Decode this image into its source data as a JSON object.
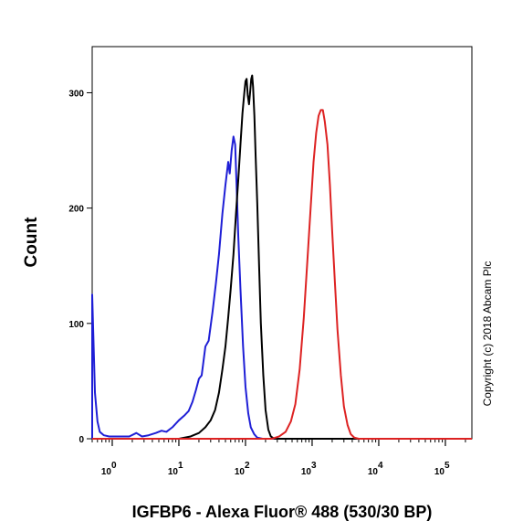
{
  "chart_data": {
    "type": "line",
    "title": "",
    "xlabel": "IGFBP6 - Alexa Fluor® 488 (530/30 BP)",
    "ylabel": "Count",
    "x_scale": "log",
    "xlim": [
      0.5,
      250000
    ],
    "ylim": [
      0,
      340
    ],
    "y_ticks": [
      "0",
      "100",
      "200",
      "300"
    ],
    "x_ticks": [
      {
        "base": "10",
        "exp": "0"
      },
      {
        "base": "10",
        "exp": "1"
      },
      {
        "base": "10",
        "exp": "2"
      },
      {
        "base": "10",
        "exp": "3"
      },
      {
        "base": "10",
        "exp": "4"
      },
      {
        "base": "10",
        "exp": "5"
      }
    ],
    "grid": false,
    "legend": "none",
    "copyright": "Copyright (c) 2018 Abcam Plc",
    "series": [
      {
        "color": "#1f1fd6",
        "points": [
          [
            0.5,
            0
          ],
          [
            0.5,
            125
          ],
          [
            0.52,
            90
          ],
          [
            0.55,
            40
          ],
          [
            0.6,
            15
          ],
          [
            0.65,
            6
          ],
          [
            0.75,
            3
          ],
          [
            0.9,
            2
          ],
          [
            1.2,
            2
          ],
          [
            1.8,
            2
          ],
          [
            2.3,
            5
          ],
          [
            2.8,
            2
          ],
          [
            3.5,
            3
          ],
          [
            4.5,
            5
          ],
          [
            5.5,
            7
          ],
          [
            6.5,
            6
          ],
          [
            8,
            10
          ],
          [
            10,
            16
          ],
          [
            12,
            20
          ],
          [
            14,
            24
          ],
          [
            16,
            32
          ],
          [
            18,
            42
          ],
          [
            20,
            52
          ],
          [
            22,
            55
          ],
          [
            25,
            80
          ],
          [
            28,
            85
          ],
          [
            32,
            110
          ],
          [
            36,
            135
          ],
          [
            40,
            160
          ],
          [
            45,
            195
          ],
          [
            50,
            220
          ],
          [
            55,
            240
          ],
          [
            58,
            230
          ],
          [
            62,
            250
          ],
          [
            66,
            262
          ],
          [
            70,
            255
          ],
          [
            74,
            215
          ],
          [
            78,
            175
          ],
          [
            84,
            130
          ],
          [
            92,
            80
          ],
          [
            100,
            45
          ],
          [
            110,
            22
          ],
          [
            120,
            10
          ],
          [
            135,
            4
          ],
          [
            150,
            1
          ],
          [
            180,
            0
          ],
          [
            250000,
            0
          ]
        ]
      },
      {
        "color": "#000000",
        "points": [
          [
            0.5,
            0
          ],
          [
            10,
            0
          ],
          [
            15,
            2
          ],
          [
            20,
            5
          ],
          [
            25,
            10
          ],
          [
            30,
            16
          ],
          [
            35,
            25
          ],
          [
            40,
            40
          ],
          [
            45,
            60
          ],
          [
            50,
            80
          ],
          [
            55,
            105
          ],
          [
            60,
            130
          ],
          [
            66,
            160
          ],
          [
            72,
            195
          ],
          [
            78,
            225
          ],
          [
            84,
            255
          ],
          [
            90,
            282
          ],
          [
            96,
            300
          ],
          [
            100,
            310
          ],
          [
            104,
            312
          ],
          [
            108,
            298
          ],
          [
            113,
            290
          ],
          [
            118,
            302
          ],
          [
            122,
            312
          ],
          [
            126,
            315
          ],
          [
            130,
            305
          ],
          [
            136,
            280
          ],
          [
            142,
            245
          ],
          [
            150,
            205
          ],
          [
            160,
            150
          ],
          [
            170,
            100
          ],
          [
            185,
            55
          ],
          [
            200,
            25
          ],
          [
            220,
            8
          ],
          [
            240,
            2
          ],
          [
            270,
            0
          ],
          [
            250000,
            0
          ]
        ]
      },
      {
        "color": "#dd2222",
        "points": [
          [
            0.5,
            0
          ],
          [
            250,
            0
          ],
          [
            320,
            2
          ],
          [
            400,
            6
          ],
          [
            480,
            15
          ],
          [
            560,
            30
          ],
          [
            650,
            60
          ],
          [
            750,
            105
          ],
          [
            850,
            155
          ],
          [
            950,
            200
          ],
          [
            1050,
            240
          ],
          [
            1150,
            265
          ],
          [
            1250,
            280
          ],
          [
            1350,
            285
          ],
          [
            1450,
            285
          ],
          [
            1550,
            275
          ],
          [
            1700,
            255
          ],
          [
            1850,
            220
          ],
          [
            2000,
            180
          ],
          [
            2200,
            135
          ],
          [
            2400,
            95
          ],
          [
            2700,
            55
          ],
          [
            3000,
            28
          ],
          [
            3400,
            12
          ],
          [
            3800,
            4
          ],
          [
            4300,
            1
          ],
          [
            5000,
            0
          ],
          [
            250000,
            0
          ]
        ]
      }
    ]
  }
}
